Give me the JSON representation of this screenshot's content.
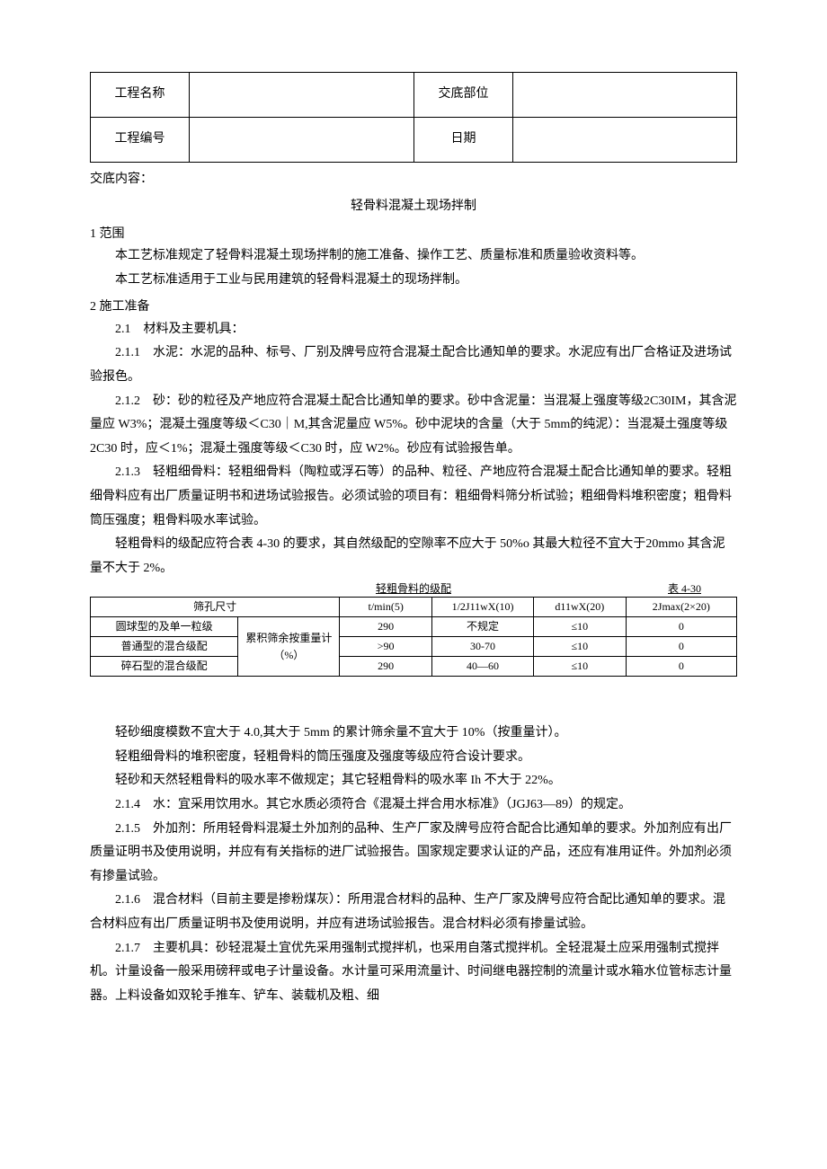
{
  "header": {
    "row1_label": "工程名称",
    "row1_value": "",
    "row1_label2": "交底部位",
    "row1_value2": "",
    "row2_label": "工程编号",
    "row2_value": "",
    "row2_label2": "日期",
    "row2_value2": ""
  },
  "content_label": "交底内容：",
  "title": "轻骨料混凝土现场拌制",
  "sec1_heading": "1 范围",
  "sec1_p1": "本工艺标准规定了轻骨料混凝土现场拌制的施工准备、操作工艺、质量标准和质量验收资料等。",
  "sec1_p2": "本工艺标准适用于工业与民用建筑的轻骨料混凝土的现场拌制。",
  "sec2_heading": "2 施工准备",
  "sec2_1": "2.1 材料及主要机具：",
  "sec2_1_1": "2.1.1 水泥：水泥的品种、标号、厂别及牌号应符合混凝土配合比通知单的要求。水泥应有出厂合格证及进场试验报色。",
  "sec2_1_2": "2.1.2 砂：砂的粒径及产地应符合混凝土配合比通知单的要求。砂中含泥量：当混凝上强度等级2C30IM，其含泥量应 W3%；混凝土强度等级＜C30｜M,其含泥量应 W5%。砂中泥块的含量（大于 5mm的纯泥）：当混凝土强度等级 2C30 时，应＜1%；混凝土强度等级＜C30 时，应 W2%。砂应有试验报告单。",
  "sec2_1_3": "2.1.3 轻粗细骨料：轻粗细骨料（陶粒或浮石等）的品种、粒径、产地应符合混凝土配合比通知单的要求。轻粗细骨料应有出厂质量证明书和进场试验报告。必须试验的项目有：粗细骨料筛分析试验；粗细骨料堆积密度；粗骨料筒压强度；粗骨料吸水率试验。",
  "sec2_1_3b": "轻粗骨料的级配应符合表 4-30 的要求，其自然级配的空隙率不应大于 50%o 其最大粒径不宜大于20mmo 其含泥量不大于 2%。",
  "table_caption_center": "轻粗骨料的级配",
  "table_caption_right": "表 4-30",
  "table": {
    "header": [
      "筛孔尺寸",
      "",
      "t/min(5)",
      "1/2J11wX(10)",
      "d11wX(20)",
      "2Jmax(2×20)"
    ],
    "merged_label": "累积筛余按重量计（%）",
    "rows": [
      [
        "圆球型的及单一粒级",
        "290",
        "不规定",
        "≤10",
        "0"
      ],
      [
        "普通型的混合级配",
        ">90",
        "30-70",
        "≤10",
        "0"
      ],
      [
        "碎石型的混合级配",
        "290",
        "40—60",
        "≤10",
        "0"
      ]
    ]
  },
  "after_p1": "轻砂细度模数不宜大于 4.0,其大于 5mm 的累计筛余量不宜大于 10%（按重量计）。",
  "after_p2": "轻粗细骨料的堆积密度，轻粗骨料的筒压强度及强度等级应符合设计要求。",
  "after_p3": "轻砂和天然轻粗骨料的吸水率不做规定；其它轻粗骨料的吸水率 Ih 不大于 22%。",
  "sec2_1_4": "2.1.4 水：宜采用饮用水。其它水质必须符合《混凝土拌合用水标准》（JGJ63—89）的规定。",
  "sec2_1_5": "2.1.5 外加剂：所用轻骨料混凝土外加剂的品种、生产厂家及牌号应符合配合比通知单的要求。外加剂应有出厂质量证明书及使用说明，并应有有关指标的进厂试验报告。国家规定要求认证的产品，还应有准用证件。外加剂必须有掺量试验。",
  "sec2_1_6": "2.1.6 混合材料（目前主要是掺粉煤灰）：所用混合材料的品种、生产厂家及牌号应符合配比通知单的要求。混合材料应有出厂质量证明书及使用说明，并应有进场试验报告。混合材料必须有掺量试验。",
  "sec2_1_7": "2.1.7 主要机具：砂轻混凝土宜优先采用强制式搅拌机，也采用自落式搅拌机。全轻混凝土应采用强制式搅拌机。计量设备一般采用磅秤或电子计量设备。水计量可采用流量计、时间继电器控制的流量计或水箱水位管标志计量器。上料设备如双轮手推车、铲车、装载机及粗、细"
}
